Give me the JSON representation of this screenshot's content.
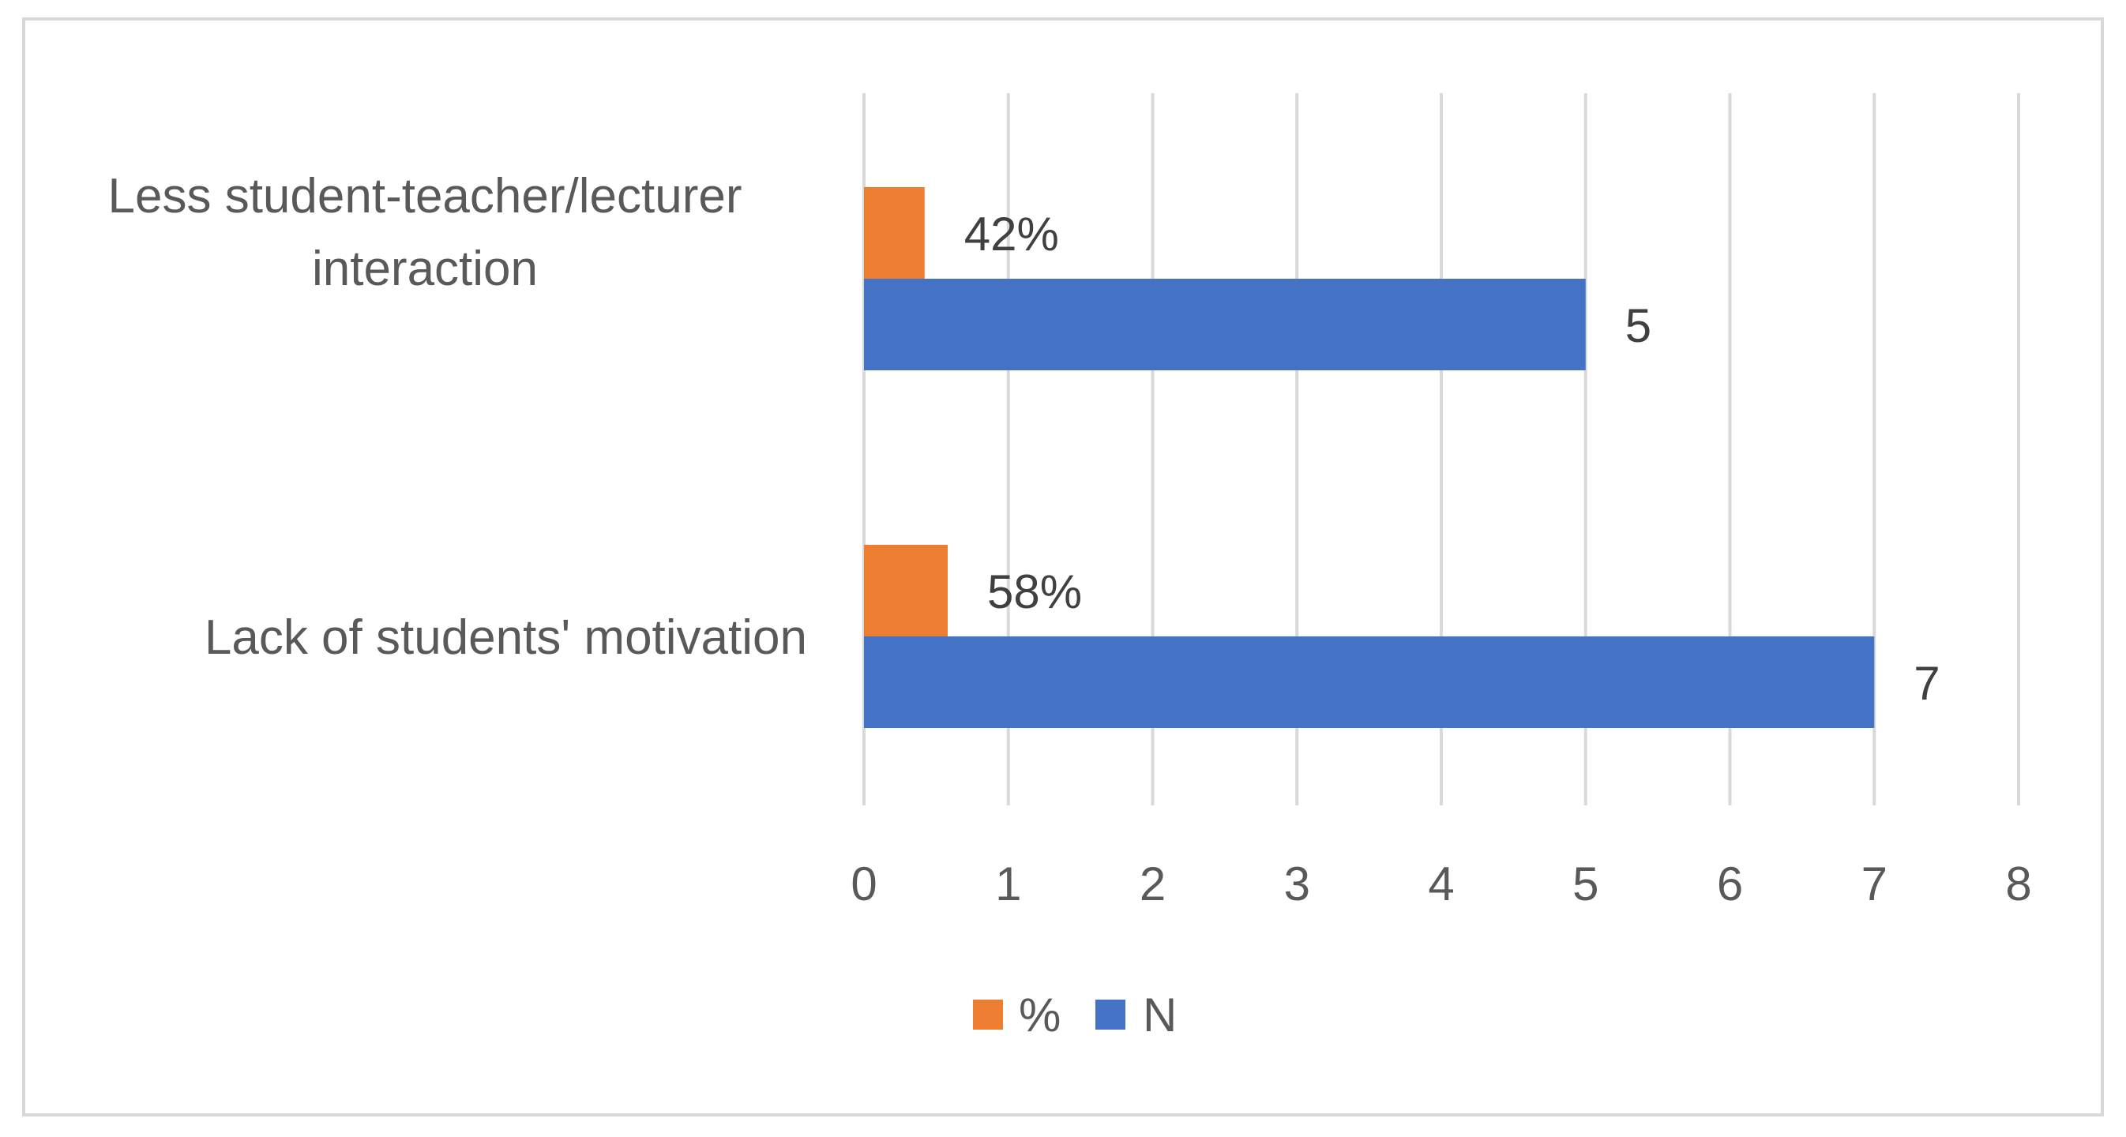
{
  "chart_data": {
    "type": "bar",
    "orientation": "horizontal",
    "categories": [
      [
        "Less student-teacher/lecturer",
        "interaction"
      ],
      [
        "Lack of students' motivation"
      ]
    ],
    "series": [
      {
        "name": "%",
        "values": [
          0.42,
          0.58
        ],
        "labels": [
          "42%",
          "58%"
        ],
        "color": "#ED7D31"
      },
      {
        "name": "N",
        "values": [
          5,
          7
        ],
        "labels": [
          "5",
          "7"
        ],
        "color": "#4472C4"
      }
    ],
    "xlim": [
      0,
      8
    ],
    "xticks": [
      "0",
      "1",
      "2",
      "3",
      "4",
      "5",
      "6",
      "7",
      "8"
    ],
    "grid": true,
    "legend": "bottom",
    "title": "",
    "xlabel": "",
    "ylabel": ""
  }
}
